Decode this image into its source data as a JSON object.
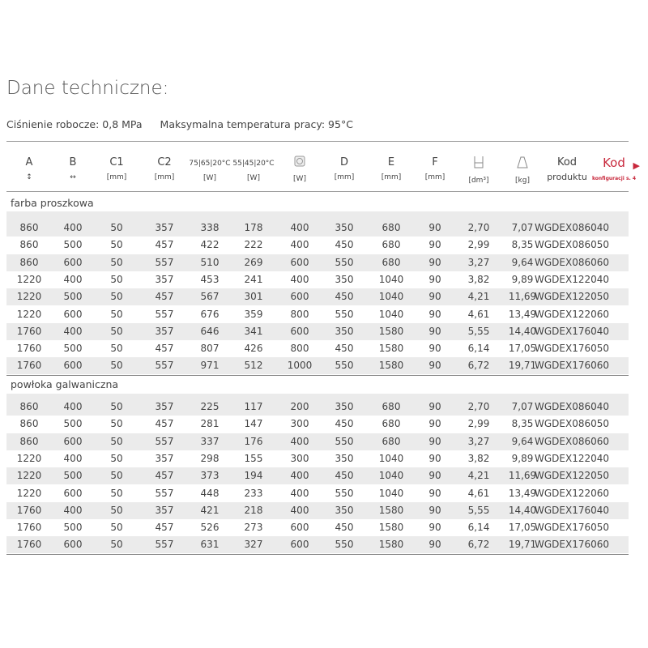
{
  "title": "Dane techniczne:",
  "pressure": "Ciśnienie robocze: 0,8 MPa",
  "max_temp": "Maksymalna temperatura pracy: 95°C",
  "headers": [
    {
      "top": "A",
      "bottom": "↕"
    },
    {
      "top": "B",
      "bottom": "↔"
    },
    {
      "top": "C1",
      "bottom": "[mm]"
    },
    {
      "top": "C2",
      "bottom": "[mm]"
    },
    {
      "top": "75|65|20°C",
      "bottom": "[W]"
    },
    {
      "top": "55|45|20°C",
      "bottom": "[W]"
    },
    {
      "top": "",
      "bottom": "[W]"
    },
    {
      "top": "D",
      "bottom": "[mm]"
    },
    {
      "top": "E",
      "bottom": "[mm]"
    },
    {
      "top": "F",
      "bottom": "[mm]"
    },
    {
      "top": "",
      "bottom": "[dm³]"
    },
    {
      "top": "",
      "bottom": "[kg]"
    },
    {
      "top": "Kod",
      "bottom": "produktu"
    },
    {
      "top": "Kod",
      "bottom": "konfiguracji s. 4"
    }
  ],
  "header_icons": [
    "heating-element-icon",
    "volume-icon",
    "weight-icon",
    "arrow-right-icon"
  ],
  "accent_color": "#c8283c",
  "sections": [
    {
      "name": "farba proszkowa",
      "rows": [
        [
          "860",
          "400",
          "50",
          "357",
          "338",
          "178",
          "400",
          "350",
          "680",
          "90",
          "2,70",
          "7,07",
          "WGDEX086040"
        ],
        [
          "860",
          "500",
          "50",
          "457",
          "422",
          "222",
          "400",
          "450",
          "680",
          "90",
          "2,99",
          "8,35",
          "WGDEX086050"
        ],
        [
          "860",
          "600",
          "50",
          "557",
          "510",
          "269",
          "600",
          "550",
          "680",
          "90",
          "3,27",
          "9,64",
          "WGDEX086060"
        ],
        [
          "1220",
          "400",
          "50",
          "357",
          "453",
          "241",
          "400",
          "350",
          "1040",
          "90",
          "3,82",
          "9,89",
          "WGDEX122040"
        ],
        [
          "1220",
          "500",
          "50",
          "457",
          "567",
          "301",
          "600",
          "450",
          "1040",
          "90",
          "4,21",
          "11,69",
          "WGDEX122050"
        ],
        [
          "1220",
          "600",
          "50",
          "557",
          "676",
          "359",
          "800",
          "550",
          "1040",
          "90",
          "4,61",
          "13,49",
          "WGDEX122060"
        ],
        [
          "1760",
          "400",
          "50",
          "357",
          "646",
          "341",
          "600",
          "350",
          "1580",
          "90",
          "5,55",
          "14,40",
          "WGDEX176040"
        ],
        [
          "1760",
          "500",
          "50",
          "457",
          "807",
          "426",
          "800",
          "450",
          "1580",
          "90",
          "6,14",
          "17,05",
          "WGDEX176050"
        ],
        [
          "1760",
          "600",
          "50",
          "557",
          "971",
          "512",
          "1000",
          "550",
          "1580",
          "90",
          "6,72",
          "19,71",
          "WGDEX176060"
        ]
      ]
    },
    {
      "name": "powłoka galwaniczna",
      "rows": [
        [
          "860",
          "400",
          "50",
          "357",
          "225",
          "117",
          "200",
          "350",
          "680",
          "90",
          "2,70",
          "7,07",
          "WGDEX086040"
        ],
        [
          "860",
          "500",
          "50",
          "457",
          "281",
          "147",
          "300",
          "450",
          "680",
          "90",
          "2,99",
          "8,35",
          "WGDEX086050"
        ],
        [
          "860",
          "600",
          "50",
          "557",
          "337",
          "176",
          "400",
          "550",
          "680",
          "90",
          "3,27",
          "9,64",
          "WGDEX086060"
        ],
        [
          "1220",
          "400",
          "50",
          "357",
          "298",
          "155",
          "300",
          "350",
          "1040",
          "90",
          "3,82",
          "9,89",
          "WGDEX122040"
        ],
        [
          "1220",
          "500",
          "50",
          "457",
          "373",
          "194",
          "400",
          "450",
          "1040",
          "90",
          "4,21",
          "11,69",
          "WGDEX122050"
        ],
        [
          "1220",
          "600",
          "50",
          "557",
          "448",
          "233",
          "400",
          "550",
          "1040",
          "90",
          "4,61",
          "13,49",
          "WGDEX122060"
        ],
        [
          "1760",
          "400",
          "50",
          "357",
          "421",
          "218",
          "400",
          "350",
          "1580",
          "90",
          "5,55",
          "14,40",
          "WGDEX176040"
        ],
        [
          "1760",
          "500",
          "50",
          "457",
          "526",
          "273",
          "600",
          "450",
          "1580",
          "90",
          "6,14",
          "17,05",
          "WGDEX176050"
        ],
        [
          "1760",
          "600",
          "50",
          "557",
          "631",
          "327",
          "600",
          "550",
          "1580",
          "90",
          "6,72",
          "19,71",
          "WGDEX176060"
        ]
      ]
    }
  ]
}
